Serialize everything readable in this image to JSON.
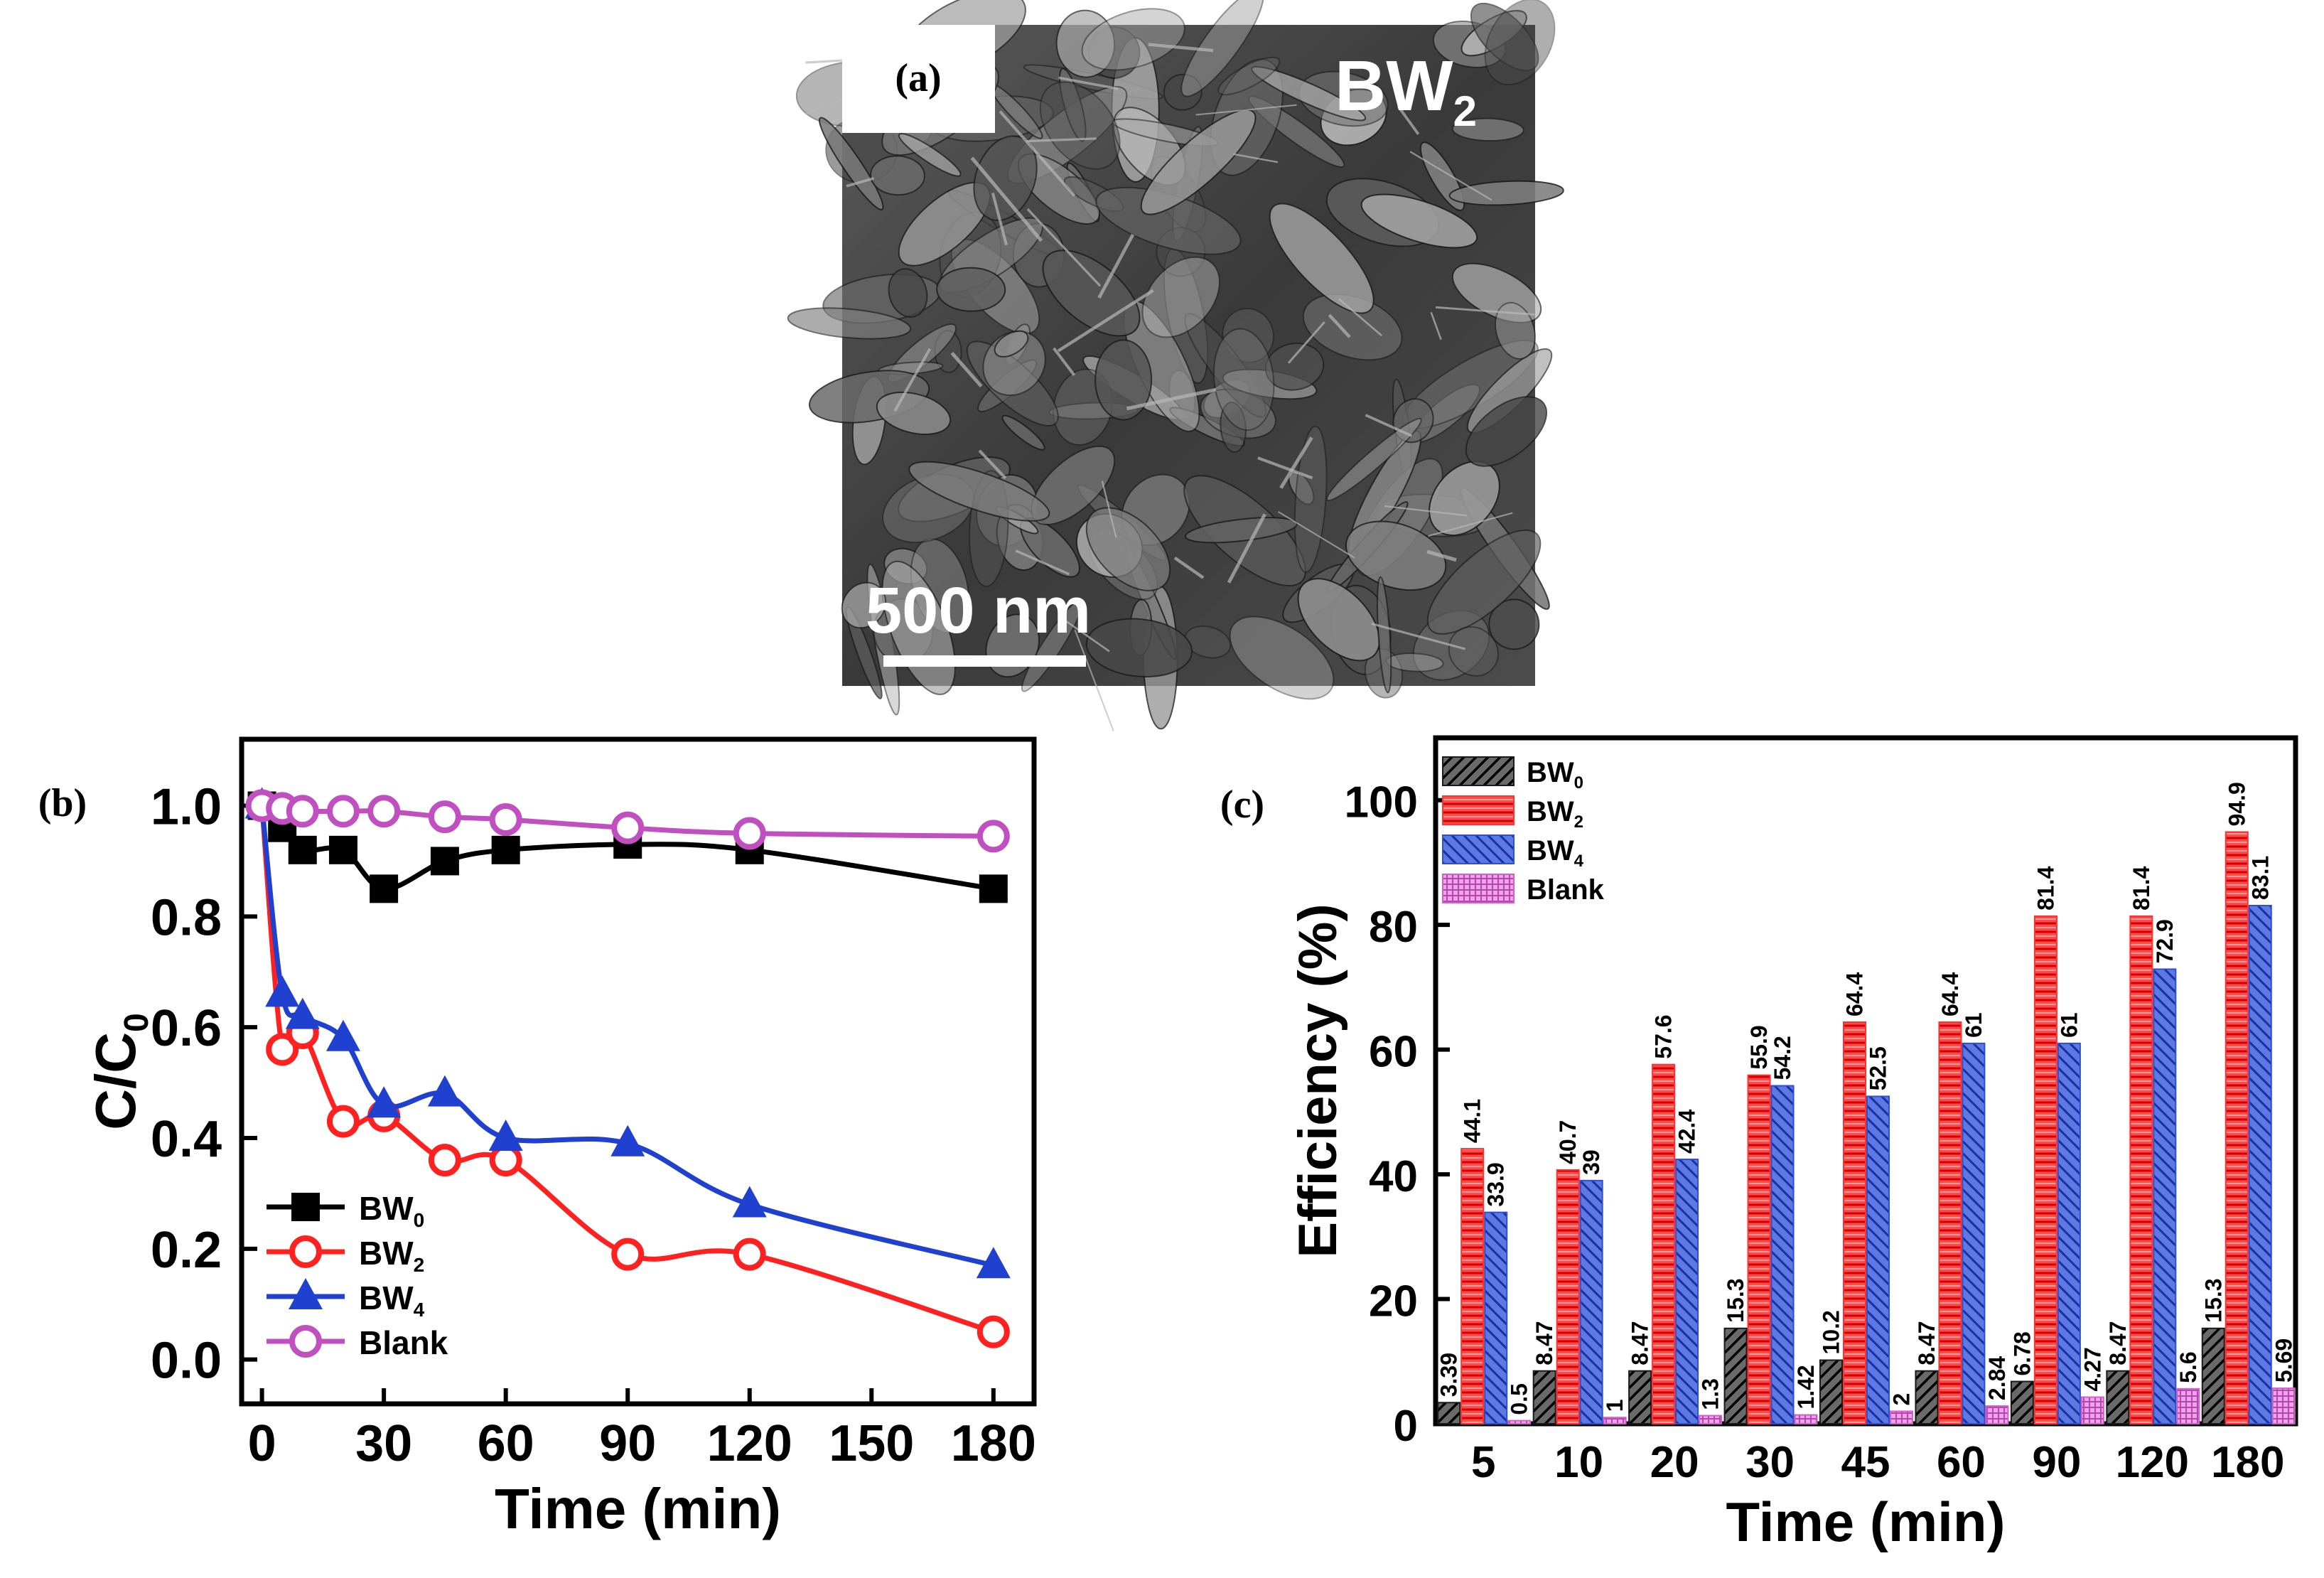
{
  "panels": {
    "a": {
      "label": "(a)",
      "sample_label": "BW",
      "sample_sub": "2",
      "scale_bar_label": "500 nm"
    }
  },
  "chart_data": [
    {
      "panel": "(b)",
      "type": "line",
      "xlabel": "Time (min)",
      "ylabel": "C/C",
      "ylabel_sub": "0",
      "x": [
        0,
        5,
        10,
        20,
        30,
        45,
        60,
        90,
        120,
        180
      ],
      "xticks": [
        0,
        30,
        60,
        90,
        120,
        150,
        180
      ],
      "xtick_labels": [
        "0",
        "30",
        "60",
        "90",
        "120",
        "150",
        "180"
      ],
      "xlim": [
        -5,
        190
      ],
      "yticks": [
        0.0,
        0.2,
        0.4,
        0.6,
        0.8,
        1.0
      ],
      "ytick_labels": [
        "0.0",
        "0.2",
        "0.4",
        "0.6",
        "0.8",
        "1.0"
      ],
      "ylim": [
        -0.08,
        1.12
      ],
      "legend": "bottom-left",
      "series": [
        {
          "name": "BW",
          "sub": "0",
          "marker": "square",
          "color": "#000000",
          "values": [
            1.0,
            0.96,
            0.92,
            0.92,
            0.85,
            0.9,
            0.92,
            0.93,
            0.92,
            0.85
          ]
        },
        {
          "name": "BW",
          "sub": "2",
          "marker": "circle-open",
          "color": "#ff2020",
          "values": [
            1.0,
            0.56,
            0.59,
            0.43,
            0.44,
            0.36,
            0.36,
            0.19,
            0.19,
            0.05
          ]
        },
        {
          "name": "BW",
          "sub": "4",
          "marker": "triangle",
          "color": "#2040d0",
          "values": [
            1.0,
            0.66,
            0.62,
            0.58,
            0.46,
            0.48,
            0.4,
            0.39,
            0.28,
            0.17
          ]
        },
        {
          "name": "Blank",
          "sub": "",
          "marker": "circle-open",
          "color": "#c050c0",
          "values": [
            1.0,
            0.995,
            0.99,
            0.99,
            0.99,
            0.98,
            0.975,
            0.96,
            0.95,
            0.945
          ]
        }
      ]
    },
    {
      "panel": "(c)",
      "type": "bar",
      "xlabel": "Time (min)",
      "ylabel": "Efficiency (%)",
      "categories": [
        "5",
        "10",
        "20",
        "30",
        "45",
        "60",
        "90",
        "120",
        "180"
      ],
      "yticks": [
        0,
        20,
        40,
        60,
        80,
        100
      ],
      "ytick_labels": [
        "0",
        "20",
        "40",
        "60",
        "80",
        "100"
      ],
      "ylim": [
        0,
        110
      ],
      "legend": "top-left",
      "series": [
        {
          "name": "BW",
          "sub": "0",
          "color": "#1a1a1a",
          "pattern": "hatch-dark",
          "values": [
            3.39,
            8.47,
            8.47,
            15.3,
            10.2,
            8.47,
            6.78,
            8.47,
            15.3
          ],
          "labels": [
            "3.39",
            "8.47",
            "8.47",
            "15.3",
            "10.2",
            "8.47",
            "6.78",
            "8.47",
            "15.3"
          ]
        },
        {
          "name": "BW",
          "sub": "2",
          "color": "#ff3030",
          "pattern": "stripes-red",
          "values": [
            44.1,
            40.7,
            57.6,
            55.9,
            64.4,
            64.4,
            81.4,
            81.4,
            94.9
          ],
          "labels": [
            "44.1",
            "40.7",
            "57.6",
            "55.9",
            "64.4",
            "64.4",
            "81.4",
            "81.4",
            "94.9"
          ]
        },
        {
          "name": "BW",
          "sub": "4",
          "color": "#2e4fcf",
          "pattern": "hatch-blue",
          "values": [
            33.9,
            39,
            42.4,
            54.2,
            52.5,
            61,
            61,
            72.9,
            83.1
          ],
          "labels": [
            "33.9",
            "39",
            "42.4",
            "54.2",
            "52.5",
            "61",
            "61",
            "72.9",
            "83.1"
          ]
        },
        {
          "name": "Blank",
          "sub": "",
          "color": "#d060c8",
          "pattern": "grid-pink",
          "values": [
            0.5,
            1,
            1.3,
            1.42,
            2,
            2.84,
            4.27,
            5.6,
            5.69
          ],
          "labels": [
            "0.5",
            "1",
            "1.3",
            "1.42",
            "2",
            "2.84",
            "4.27",
            "5.6",
            "5.69"
          ]
        }
      ]
    }
  ]
}
